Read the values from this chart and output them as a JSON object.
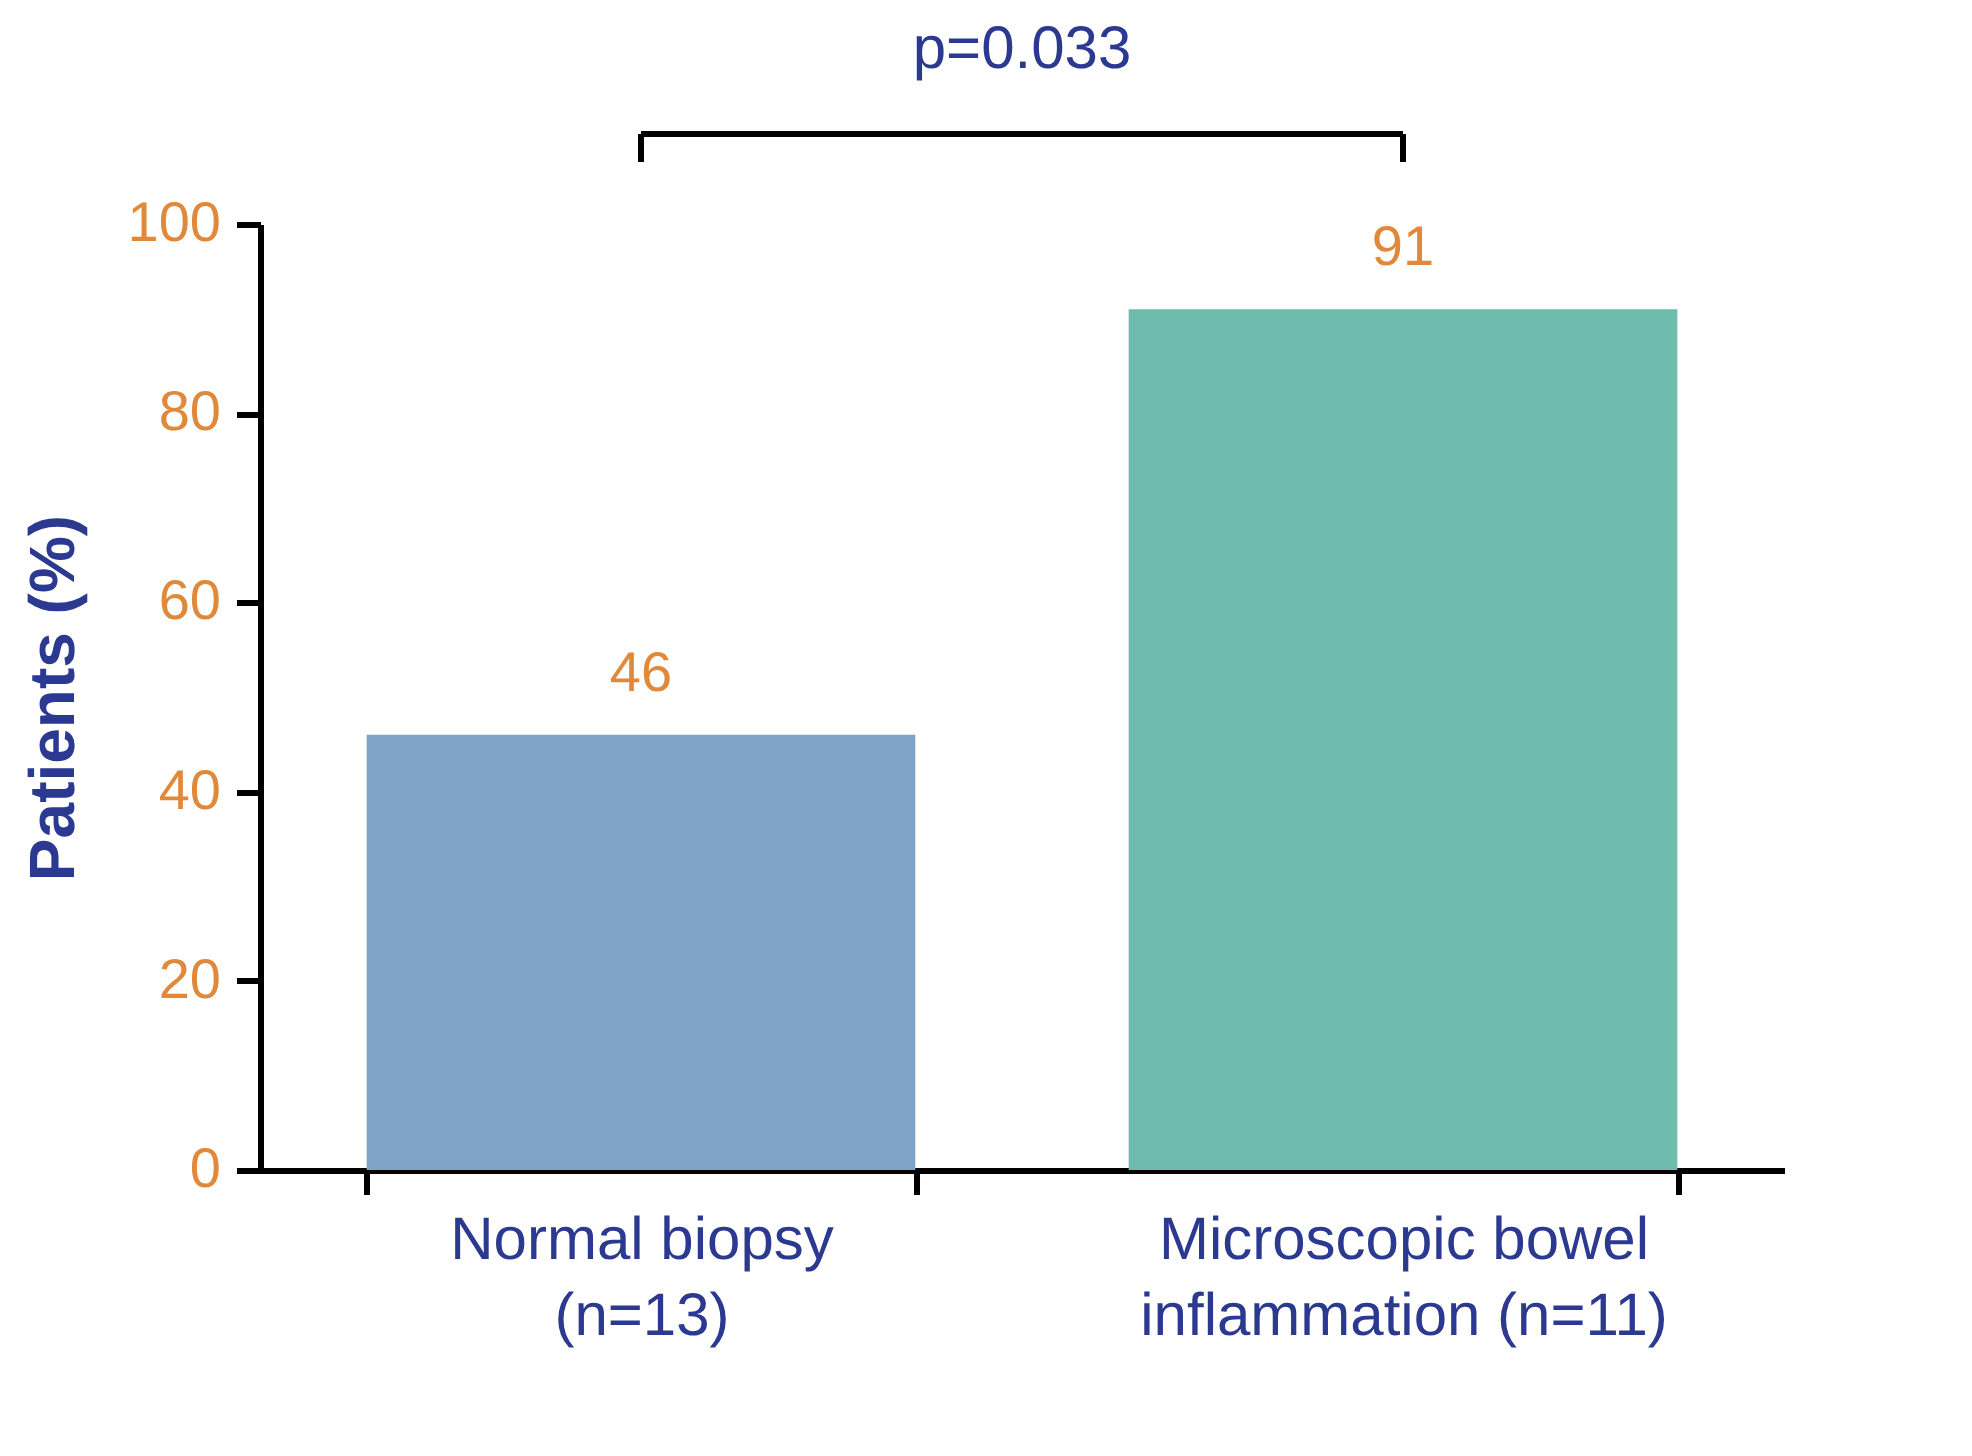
{
  "chart_data": {
    "type": "bar",
    "categories": [
      "Normal biopsy\n(n=13)",
      "Microscopic bowel\ninflammation (n=11)"
    ],
    "values": [
      46,
      91
    ],
    "colors": [
      "#7fa3c7",
      "#6dbcae"
    ],
    "ylabel": "Patients (%)",
    "ylim": [
      0,
      100
    ],
    "yticks": [
      0,
      20,
      40,
      60,
      80,
      100
    ],
    "data_labels": true,
    "annotations": [
      "p=0.033"
    ],
    "grid": false
  }
}
